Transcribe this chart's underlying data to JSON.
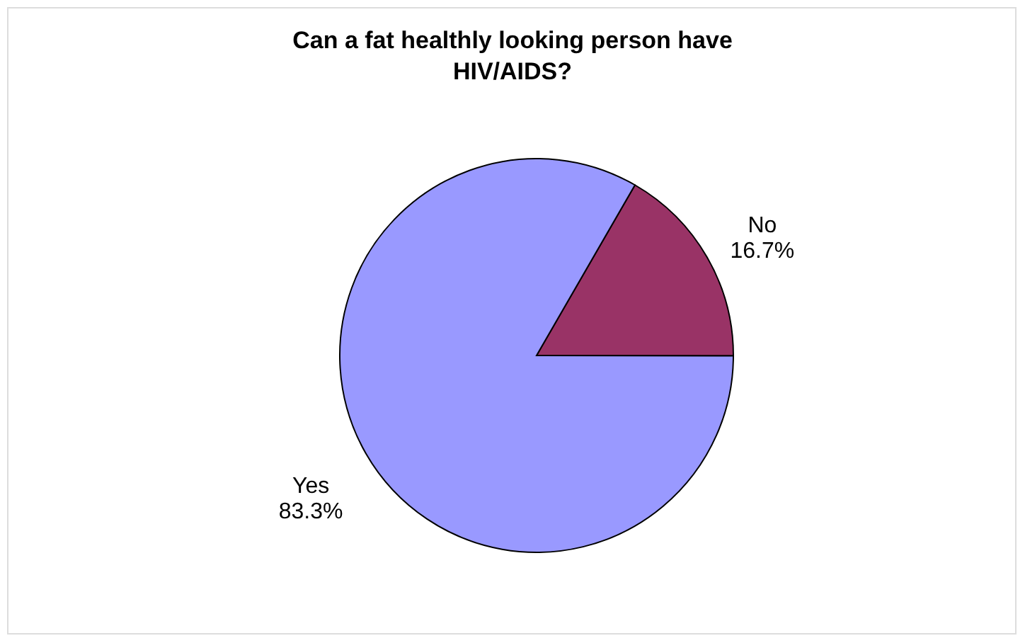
{
  "chart_data": {
    "type": "pie",
    "title": "Can a fat healthly looking person have HIV/AIDS?",
    "categories": [
      "No",
      "Yes"
    ],
    "values": [
      16.7,
      83.3
    ],
    "colors": [
      "#993366",
      "#9999ff"
    ],
    "value_labels": [
      "16.7%",
      "83.3%"
    ]
  }
}
